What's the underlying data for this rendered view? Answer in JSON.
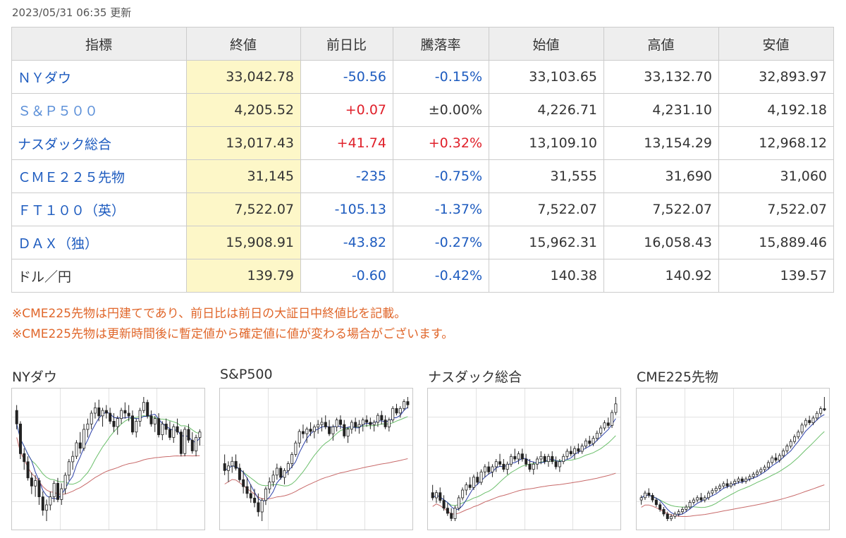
{
  "updated": "2023/05/31 06:35 更新",
  "table": {
    "headers": [
      "指標",
      "終値",
      "前日比",
      "騰落率",
      "始値",
      "高値",
      "安値"
    ],
    "rows": [
      {
        "name": "ＮＹダウ",
        "close": "33,042.78",
        "change": "-50.56",
        "pct": "-0.15%",
        "open": "33,103.65",
        "high": "33,132.70",
        "low": "32,893.97",
        "dir": "neg",
        "link": "lnk"
      },
      {
        "name": "Ｓ＆Ｐ５００",
        "close": "4,205.52",
        "change": "+0.07",
        "pct": "±0.00%",
        "open": "4,226.71",
        "high": "4,231.10",
        "low": "4,192.18",
        "dir": "pos",
        "pct_dir": "neu",
        "link": "lnk-light"
      },
      {
        "name": "ナスダック総合",
        "close": "13,017.43",
        "change": "+41.74",
        "pct": "+0.32%",
        "open": "13,109.10",
        "high": "13,154.29",
        "low": "12,968.12",
        "dir": "pos",
        "link": "lnk"
      },
      {
        "name": "ＣＭＥ２２５先物",
        "close": "31,145",
        "change": "-235",
        "pct": "-0.75%",
        "open": "31,555",
        "high": "31,690",
        "low": "31,060",
        "dir": "neg",
        "link": "lnk"
      },
      {
        "name": "ＦＴ１００（英）",
        "close": "7,522.07",
        "change": "-105.13",
        "pct": "-1.37%",
        "open": "7,522.07",
        "high": "7,522.07",
        "low": "7,522.07",
        "dir": "neg",
        "link": "lnk"
      },
      {
        "name": "ＤＡＸ（独）",
        "close": "15,908.91",
        "change": "-43.82",
        "pct": "-0.27%",
        "open": "15,962.31",
        "high": "16,058.43",
        "low": "15,889.46",
        "dir": "neg",
        "link": "lnk"
      },
      {
        "name": "ドル／円",
        "close": "139.79",
        "change": "-0.60",
        "pct": "-0.42%",
        "open": "140.38",
        "high": "140.92",
        "low": "139.57",
        "dir": "neg",
        "link": "plain"
      }
    ]
  },
  "notes": [
    "※CME225先物は円建てであり、前日比は前日の大証日中終値比を記載。",
    "※CME225先物は更新時間後に暫定値から確定値に値が変わる場合がございます。"
  ],
  "colors": {
    "ma_short": "#2b3fa8",
    "ma_mid": "#6bbf6b",
    "ma_long": "#c86a6a",
    "up": "#ffffff",
    "down": "#222222",
    "grid": "#e2e2e2"
  },
  "charts": [
    {
      "title": "NYダウ",
      "ohlc": [
        [
          33800,
          34000,
          33100,
          33300
        ],
        [
          33300,
          33400,
          32000,
          32200
        ],
        [
          32200,
          32400,
          31600,
          31900
        ],
        [
          31900,
          32100,
          31200,
          31300
        ],
        [
          31300,
          31500,
          30700,
          31000
        ],
        [
          31000,
          31400,
          30600,
          31200
        ],
        [
          31200,
          31300,
          30300,
          30600
        ],
        [
          30600,
          30800,
          29900,
          30100
        ],
        [
          30100,
          30500,
          29700,
          30300
        ],
        [
          30300,
          30800,
          30100,
          30600
        ],
        [
          30600,
          31200,
          30400,
          31100
        ],
        [
          31100,
          31300,
          30400,
          30500
        ],
        [
          30500,
          31100,
          30300,
          30900
        ],
        [
          30900,
          31500,
          30700,
          31400
        ],
        [
          31400,
          32000,
          31200,
          31900
        ],
        [
          31900,
          32300,
          31600,
          32100
        ],
        [
          32100,
          32700,
          32000,
          32600
        ],
        [
          32600,
          33000,
          32200,
          32400
        ],
        [
          32400,
          33300,
          32300,
          33100
        ],
        [
          33100,
          33500,
          32800,
          33300
        ],
        [
          33300,
          33800,
          33100,
          33700
        ],
        [
          33700,
          34100,
          33500,
          33900
        ],
        [
          33900,
          34200,
          33400,
          33600
        ],
        [
          33600,
          33900,
          33200,
          33800
        ],
        [
          33800,
          34000,
          33500,
          33700
        ],
        [
          33700,
          33900,
          33300,
          33400
        ],
        [
          33400,
          33700,
          33000,
          33200
        ],
        [
          33200,
          33600,
          32900,
          33500
        ],
        [
          33500,
          33900,
          33300,
          33800
        ],
        [
          33800,
          34100,
          33500,
          33700
        ],
        [
          33700,
          34000,
          33400,
          33600
        ],
        [
          33600,
          33800,
          32900,
          33000
        ],
        [
          33000,
          33500,
          32800,
          33400
        ],
        [
          33400,
          33900,
          33200,
          33800
        ],
        [
          33800,
          34300,
          33700,
          34100
        ],
        [
          34100,
          34200,
          33500,
          33600
        ],
        [
          33600,
          33800,
          33200,
          33300
        ],
        [
          33300,
          33600,
          33000,
          33500
        ],
        [
          33500,
          33700,
          32800,
          32900
        ],
        [
          32900,
          33400,
          32700,
          33300
        ],
        [
          33300,
          33500,
          32900,
          33100
        ],
        [
          33100,
          33400,
          32700,
          32800
        ],
        [
          32800,
          33300,
          32600,
          33200
        ],
        [
          33200,
          33500,
          32900,
          33000
        ],
        [
          33000,
          33100,
          32100,
          32200
        ],
        [
          32200,
          33200,
          32100,
          33100
        ],
        [
          33100,
          33300,
          32600,
          32700
        ],
        [
          32700,
          33000,
          32200,
          32300
        ],
        [
          32300,
          32900,
          32100,
          32800
        ],
        [
          32800,
          33100,
          32500,
          33000
        ]
      ]
    },
    {
      "title": "S&P500",
      "ohlc": [
        [
          3950,
          3990,
          3900,
          3920
        ],
        [
          3920,
          3960,
          3870,
          3940
        ],
        [
          3940,
          3980,
          3910,
          3960
        ],
        [
          3960,
          3990,
          3920,
          3930
        ],
        [
          3930,
          3950,
          3870,
          3880
        ],
        [
          3880,
          3920,
          3820,
          3850
        ],
        [
          3850,
          3890,
          3800,
          3820
        ],
        [
          3820,
          3860,
          3780,
          3800
        ],
        [
          3800,
          3840,
          3760,
          3780
        ],
        [
          3780,
          3820,
          3720,
          3740
        ],
        [
          3740,
          3800,
          3700,
          3790
        ],
        [
          3790,
          3850,
          3770,
          3840
        ],
        [
          3840,
          3890,
          3820,
          3870
        ],
        [
          3870,
          3920,
          3850,
          3900
        ],
        [
          3900,
          3950,
          3880,
          3930
        ],
        [
          3930,
          3940,
          3880,
          3890
        ],
        [
          3890,
          3930,
          3860,
          3920
        ],
        [
          3920,
          3960,
          3900,
          3950
        ],
        [
          3950,
          4000,
          3930,
          3990
        ],
        [
          3990,
          4050,
          3980,
          4040
        ],
        [
          4040,
          4100,
          4020,
          4090
        ],
        [
          4090,
          4120,
          4060,
          4080
        ],
        [
          4080,
          4110,
          4040,
          4100
        ],
        [
          4100,
          4130,
          4070,
          4090
        ],
        [
          4090,
          4120,
          4060,
          4110
        ],
        [
          4110,
          4140,
          4080,
          4120
        ],
        [
          4120,
          4150,
          4090,
          4130
        ],
        [
          4130,
          4160,
          4100,
          4110
        ],
        [
          4110,
          4140,
          4070,
          4080
        ],
        [
          4080,
          4120,
          4050,
          4110
        ],
        [
          4110,
          4150,
          4090,
          4140
        ],
        [
          4140,
          4160,
          4100,
          4120
        ],
        [
          4120,
          4140,
          4060,
          4070
        ],
        [
          4070,
          4110,
          4040,
          4100
        ],
        [
          4100,
          4140,
          4080,
          4130
        ],
        [
          4130,
          4150,
          4090,
          4110
        ],
        [
          4110,
          4140,
          4080,
          4120
        ],
        [
          4120,
          4150,
          4090,
          4140
        ],
        [
          4140,
          4160,
          4110,
          4130
        ],
        [
          4130,
          4150,
          4100,
          4120
        ],
        [
          4120,
          4140,
          4090,
          4130
        ],
        [
          4130,
          4170,
          4110,
          4160
        ],
        [
          4160,
          4180,
          4120,
          4140
        ],
        [
          4140,
          4160,
          4100,
          4110
        ],
        [
          4110,
          4150,
          4090,
          4140
        ],
        [
          4140,
          4200,
          4130,
          4190
        ],
        [
          4190,
          4210,
          4160,
          4170
        ],
        [
          4170,
          4200,
          4150,
          4190
        ],
        [
          4190,
          4230,
          4180,
          4220
        ],
        [
          4220,
          4240,
          4190,
          4206
        ]
      ]
    },
    {
      "title": "ナスダック総合",
      "ohlc": [
        [
          11300,
          11450,
          11150,
          11200
        ],
        [
          11200,
          11350,
          11100,
          11300
        ],
        [
          11300,
          11400,
          11100,
          11150
        ],
        [
          11150,
          11250,
          10950,
          11000
        ],
        [
          11000,
          11100,
          10850,
          10900
        ],
        [
          10900,
          11000,
          10750,
          10800
        ],
        [
          10800,
          11050,
          10750,
          11000
        ],
        [
          11000,
          11250,
          10950,
          11200
        ],
        [
          11200,
          11400,
          11150,
          11350
        ],
        [
          11350,
          11500,
          11250,
          11450
        ],
        [
          11450,
          11600,
          11350,
          11400
        ],
        [
          11400,
          11650,
          11350,
          11600
        ],
        [
          11600,
          11700,
          11450,
          11500
        ],
        [
          11500,
          11750,
          11450,
          11700
        ],
        [
          11700,
          11850,
          11600,
          11800
        ],
        [
          11800,
          11900,
          11650,
          11700
        ],
        [
          11700,
          11850,
          11600,
          11800
        ],
        [
          11800,
          11950,
          11700,
          11900
        ],
        [
          11900,
          12050,
          11800,
          11850
        ],
        [
          11850,
          11950,
          11700,
          11750
        ],
        [
          11750,
          11900,
          11650,
          11850
        ],
        [
          11850,
          12050,
          11800,
          12000
        ],
        [
          12000,
          12150,
          11900,
          11950
        ],
        [
          11950,
          12100,
          11850,
          12050
        ],
        [
          12050,
          12150,
          11900,
          11950
        ],
        [
          11950,
          12050,
          11800,
          11850
        ],
        [
          11850,
          11950,
          11700,
          11750
        ],
        [
          11750,
          11900,
          11650,
          11850
        ],
        [
          11850,
          12000,
          11750,
          11950
        ],
        [
          11950,
          12100,
          11850,
          12000
        ],
        [
          12000,
          12050,
          11850,
          11900
        ],
        [
          11900,
          12050,
          11800,
          12000
        ],
        [
          12000,
          12100,
          11850,
          11900
        ],
        [
          11900,
          12000,
          11750,
          11800
        ],
        [
          11800,
          11950,
          11700,
          11900
        ],
        [
          11900,
          12050,
          11850,
          12000
        ],
        [
          12000,
          12150,
          11950,
          12100
        ],
        [
          12100,
          12200,
          12000,
          12050
        ],
        [
          12050,
          12200,
          11950,
          12150
        ],
        [
          12150,
          12250,
          12050,
          12100
        ],
        [
          12100,
          12250,
          12050,
          12200
        ],
        [
          12200,
          12350,
          12150,
          12300
        ],
        [
          12300,
          12400,
          12200,
          12250
        ],
        [
          12250,
          12400,
          12200,
          12350
        ],
        [
          12350,
          12500,
          12300,
          12450
        ],
        [
          12450,
          12600,
          12400,
          12550
        ],
        [
          12550,
          12700,
          12500,
          12650
        ],
        [
          12650,
          12750,
          12550,
          12600
        ],
        [
          12600,
          12900,
          12550,
          12850
        ],
        [
          12850,
          13150,
          12800,
          13017
        ]
      ]
    },
    {
      "title": "CME225先物",
      "ohlc": [
        [
          27300,
          27500,
          27100,
          27400
        ],
        [
          27400,
          27700,
          27300,
          27600
        ],
        [
          27600,
          27800,
          27400,
          27500
        ],
        [
          27500,
          27600,
          27200,
          27300
        ],
        [
          27300,
          27400,
          27000,
          27100
        ],
        [
          27100,
          27200,
          26800,
          26900
        ],
        [
          26900,
          27000,
          26600,
          26700
        ],
        [
          26700,
          26800,
          26400,
          26500
        ],
        [
          26500,
          26700,
          26400,
          26600
        ],
        [
          26600,
          26800,
          26500,
          26700
        ],
        [
          26700,
          26900,
          26600,
          26800
        ],
        [
          26800,
          27000,
          26700,
          26900
        ],
        [
          26900,
          27100,
          26800,
          27000
        ],
        [
          27000,
          27300,
          26900,
          27200
        ],
        [
          27200,
          27400,
          27100,
          27300
        ],
        [
          27300,
          27500,
          27200,
          27400
        ],
        [
          27400,
          27600,
          27200,
          27300
        ],
        [
          27300,
          27500,
          27200,
          27400
        ],
        [
          27400,
          27700,
          27300,
          27600
        ],
        [
          27600,
          27800,
          27500,
          27700
        ],
        [
          27700,
          27900,
          27600,
          27800
        ],
        [
          27800,
          28000,
          27700,
          27900
        ],
        [
          27900,
          28100,
          27800,
          28000
        ],
        [
          28000,
          28200,
          27800,
          27900
        ],
        [
          27900,
          28100,
          27800,
          28000
        ],
        [
          28000,
          28200,
          27900,
          28100
        ],
        [
          28100,
          28300,
          28000,
          28200
        ],
        [
          28200,
          28300,
          28000,
          28100
        ],
        [
          28100,
          28300,
          28000,
          28200
        ],
        [
          28200,
          28400,
          28100,
          28300
        ],
        [
          28300,
          28500,
          28200,
          28400
        ],
        [
          28400,
          28600,
          28300,
          28500
        ],
        [
          28500,
          28700,
          28400,
          28600
        ],
        [
          28600,
          28800,
          28500,
          28700
        ],
        [
          28700,
          29000,
          28600,
          28900
        ],
        [
          28900,
          29200,
          28800,
          29100
        ],
        [
          29100,
          29300,
          28900,
          29000
        ],
        [
          29000,
          29300,
          28900,
          29200
        ],
        [
          29200,
          29500,
          29100,
          29400
        ],
        [
          29400,
          29700,
          29300,
          29600
        ],
        [
          29600,
          29900,
          29500,
          29800
        ],
        [
          29800,
          30100,
          29700,
          30000
        ],
        [
          30000,
          30300,
          29900,
          30200
        ],
        [
          30200,
          30600,
          30100,
          30500
        ],
        [
          30500,
          30800,
          30400,
          30700
        ],
        [
          30700,
          30900,
          30500,
          30600
        ],
        [
          30600,
          30900,
          30500,
          30800
        ],
        [
          30800,
          31100,
          30700,
          31000
        ],
        [
          31000,
          31300,
          30900,
          31200
        ],
        [
          31200,
          31700,
          31100,
          31145
        ]
      ]
    }
  ]
}
